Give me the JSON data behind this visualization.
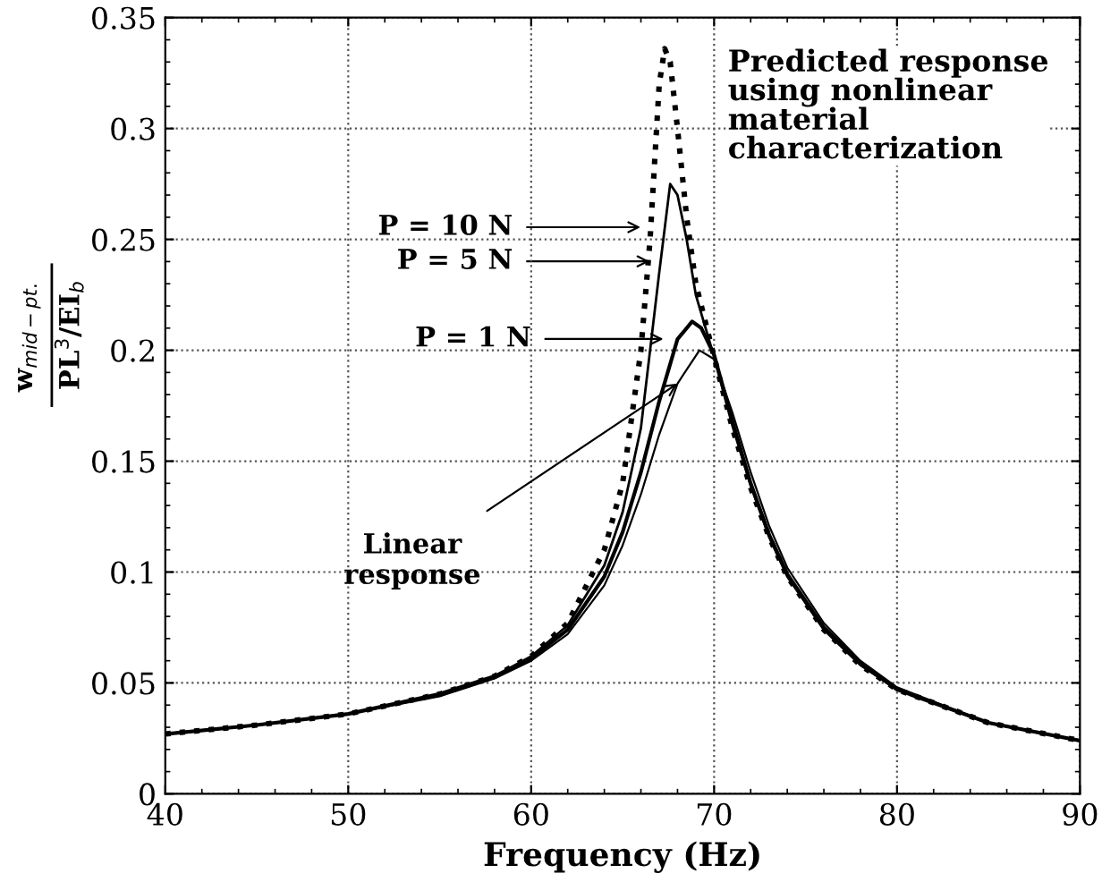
{
  "chart_data": {
    "type": "line",
    "xlabel": "Frequency (Hz)",
    "ylabel": "w$_{mid−pt.}$\nPL$^{3}$/EI$_{b}$",
    "xlim": [
      40,
      90
    ],
    "xticks": [
      40,
      50,
      60,
      70,
      80,
      90
    ],
    "ylim": [
      0,
      0.35
    ],
    "yticks": [
      0,
      0.05,
      0.1,
      0.15,
      0.2,
      0.25,
      0.3,
      0.35
    ],
    "grid": true,
    "marker": "none",
    "series": [
      {
        "color": "#000000",
        "line_style": "solid",
        "x": [
          40,
          45,
          50,
          55,
          58,
          60,
          62,
          64,
          65,
          66,
          67,
          68,
          69.2,
          70,
          71,
          72,
          73,
          74,
          76,
          78,
          80,
          85,
          90
        ],
        "values": [
          0.027,
          0.031,
          0.036,
          0.044,
          0.052,
          0.06,
          0.072,
          0.094,
          0.112,
          0.135,
          0.162,
          0.185,
          0.2,
          0.196,
          0.172,
          0.145,
          0.121,
          0.102,
          0.077,
          0.06,
          0.048,
          0.032,
          0.024
        ]
      },
      {
        "color": "#000000",
        "line_style": "solid",
        "x": [
          40,
          45,
          50,
          55,
          58,
          60,
          62,
          64,
          65,
          66,
          67,
          68,
          68.8,
          69.3,
          70,
          71,
          72,
          73,
          74,
          76,
          78,
          80,
          85,
          90
        ],
        "values": [
          0.027,
          0.031,
          0.036,
          0.045,
          0.053,
          0.061,
          0.074,
          0.098,
          0.118,
          0.145,
          0.177,
          0.205,
          0.213,
          0.21,
          0.198,
          0.168,
          0.14,
          0.117,
          0.099,
          0.075,
          0.059,
          0.047,
          0.032,
          0.024
        ]
      },
      {
        "color": "#000000",
        "line_style": "solid",
        "x": [
          40,
          45,
          50,
          55,
          58,
          60,
          62,
          64,
          65,
          66,
          67,
          67.6,
          68,
          68.5,
          69,
          70,
          71,
          72,
          73,
          74,
          76,
          78,
          80,
          85,
          90
        ],
        "values": [
          0.027,
          0.031,
          0.036,
          0.045,
          0.053,
          0.062,
          0.076,
          0.103,
          0.127,
          0.165,
          0.235,
          0.275,
          0.27,
          0.25,
          0.225,
          0.197,
          0.166,
          0.139,
          0.116,
          0.098,
          0.074,
          0.058,
          0.047,
          0.032,
          0.024
        ]
      },
      {
        "color": "#000000",
        "line_style": "dotted",
        "x": [
          40,
          45,
          50,
          55,
          58,
          60,
          62,
          64,
          65,
          66,
          66.5,
          67,
          67.3,
          67.6,
          68,
          68.5,
          69,
          70,
          71,
          72,
          73,
          74,
          76,
          78,
          80,
          85,
          90
        ],
        "values": [
          0.027,
          0.031,
          0.036,
          0.045,
          0.053,
          0.062,
          0.077,
          0.11,
          0.14,
          0.2,
          0.25,
          0.32,
          0.336,
          0.33,
          0.3,
          0.26,
          0.23,
          0.197,
          0.165,
          0.138,
          0.116,
          0.098,
          0.074,
          0.058,
          0.047,
          0.032,
          0.024
        ]
      }
    ],
    "annotations": [
      "P = 10 N",
      "P = 5 N",
      "P = 1 N",
      {
        "text": "Linear\nresponse",
        "x": 68.0,
        "y": 0.185
      },
      "Predicted response\nusing nonlinear\nmaterial\ncharacterization"
    ]
  }
}
